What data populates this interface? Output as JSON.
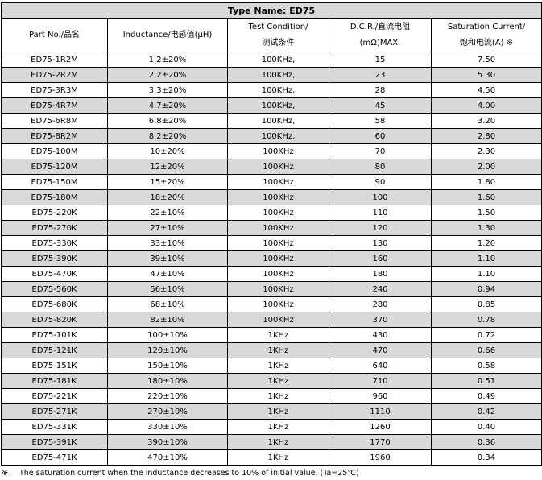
{
  "title": "Type Name: ED75",
  "headers": {
    "part": "Part No./品名",
    "inductance": "Inductance/电感值(μH)",
    "test1": "Test Condition/",
    "test2": "测试条件",
    "dcr1": "D.C.R./直流电阻",
    "dcr2": "(mΩ)MAX.",
    "sat1": "Saturation Current/",
    "sat2": "饱和电流(A) ※"
  },
  "rows": [
    [
      "ED75-1R2M",
      "1.2±20%",
      "100KHz,",
      "15",
      "7.50"
    ],
    [
      "ED75-2R2M",
      "2.2±20%",
      "100KHz,",
      "23",
      "5.30"
    ],
    [
      "ED75-3R3M",
      "3.3±20%",
      "100KHz,",
      "28",
      "4.50"
    ],
    [
      "ED75-4R7M",
      "4.7±20%",
      "100KHz,",
      "45",
      "4.00"
    ],
    [
      "ED75-6R8M",
      "6.8±20%",
      "100KHz,",
      "58",
      "3.20"
    ],
    [
      "ED75-8R2M",
      "8.2±20%",
      "100KHz,",
      "60",
      "2.80"
    ],
    [
      "ED75-100M",
      "10±20%",
      "100KHz",
      "70",
      "2.30"
    ],
    [
      "ED75-120M",
      "12±20%",
      "100KHz",
      "80",
      "2.00"
    ],
    [
      "ED75-150M",
      "15±20%",
      "100KHz",
      "90",
      "1.80"
    ],
    [
      "ED75-180M",
      "18±20%",
      "100KHz",
      "100",
      "1.60"
    ],
    [
      "ED75-220K",
      "22±10%",
      "100KHz",
      "110",
      "1.50"
    ],
    [
      "ED75-270K",
      "27±10%",
      "100KHz",
      "120",
      "1.30"
    ],
    [
      "ED75-330K",
      "33±10%",
      "100KHz",
      "130",
      "1.20"
    ],
    [
      "ED75-390K",
      "39±10%",
      "100KHz",
      "160",
      "1.10"
    ],
    [
      "ED75-470K",
      "47±10%",
      "100KHz",
      "180",
      "1.10"
    ],
    [
      "ED75-560K",
      "56±10%",
      "100KHz",
      "240",
      "0.94"
    ],
    [
      "ED75-680K",
      "68±10%",
      "100KHz",
      "280",
      "0.85"
    ],
    [
      "ED75-820K",
      "82±10%",
      "100KHz",
      "370",
      "0.78"
    ],
    [
      "ED75-101K",
      "100±10%",
      "1KHz",
      "430",
      "0.72"
    ],
    [
      "ED75-121K",
      "120±10%",
      "1KHz",
      "470",
      "0.66"
    ],
    [
      "ED75-151K",
      "150±10%",
      "1KHz",
      "640",
      "0.58"
    ],
    [
      "ED75-181K",
      "180±10%",
      "1KHz",
      "710",
      "0.51"
    ],
    [
      "ED75-221K",
      "220±10%",
      "1KHz",
      "960",
      "0.49"
    ],
    [
      "ED75-271K",
      "270±10%",
      "1KHz",
      "1110",
      "0.42"
    ],
    [
      "ED75-331K",
      "330±10%",
      "1KHz",
      "1260",
      "0.40"
    ],
    [
      "ED75-391K",
      "390±10%",
      "1KHz",
      "1770",
      "0.36"
    ],
    [
      "ED75-471K",
      "470±10%",
      "1KHz",
      "1960",
      "0.34"
    ]
  ],
  "note": {
    "mark": "※",
    "text": "The saturation current when the inductance decreases to 10% of initial value. (Ta=25℃)"
  }
}
